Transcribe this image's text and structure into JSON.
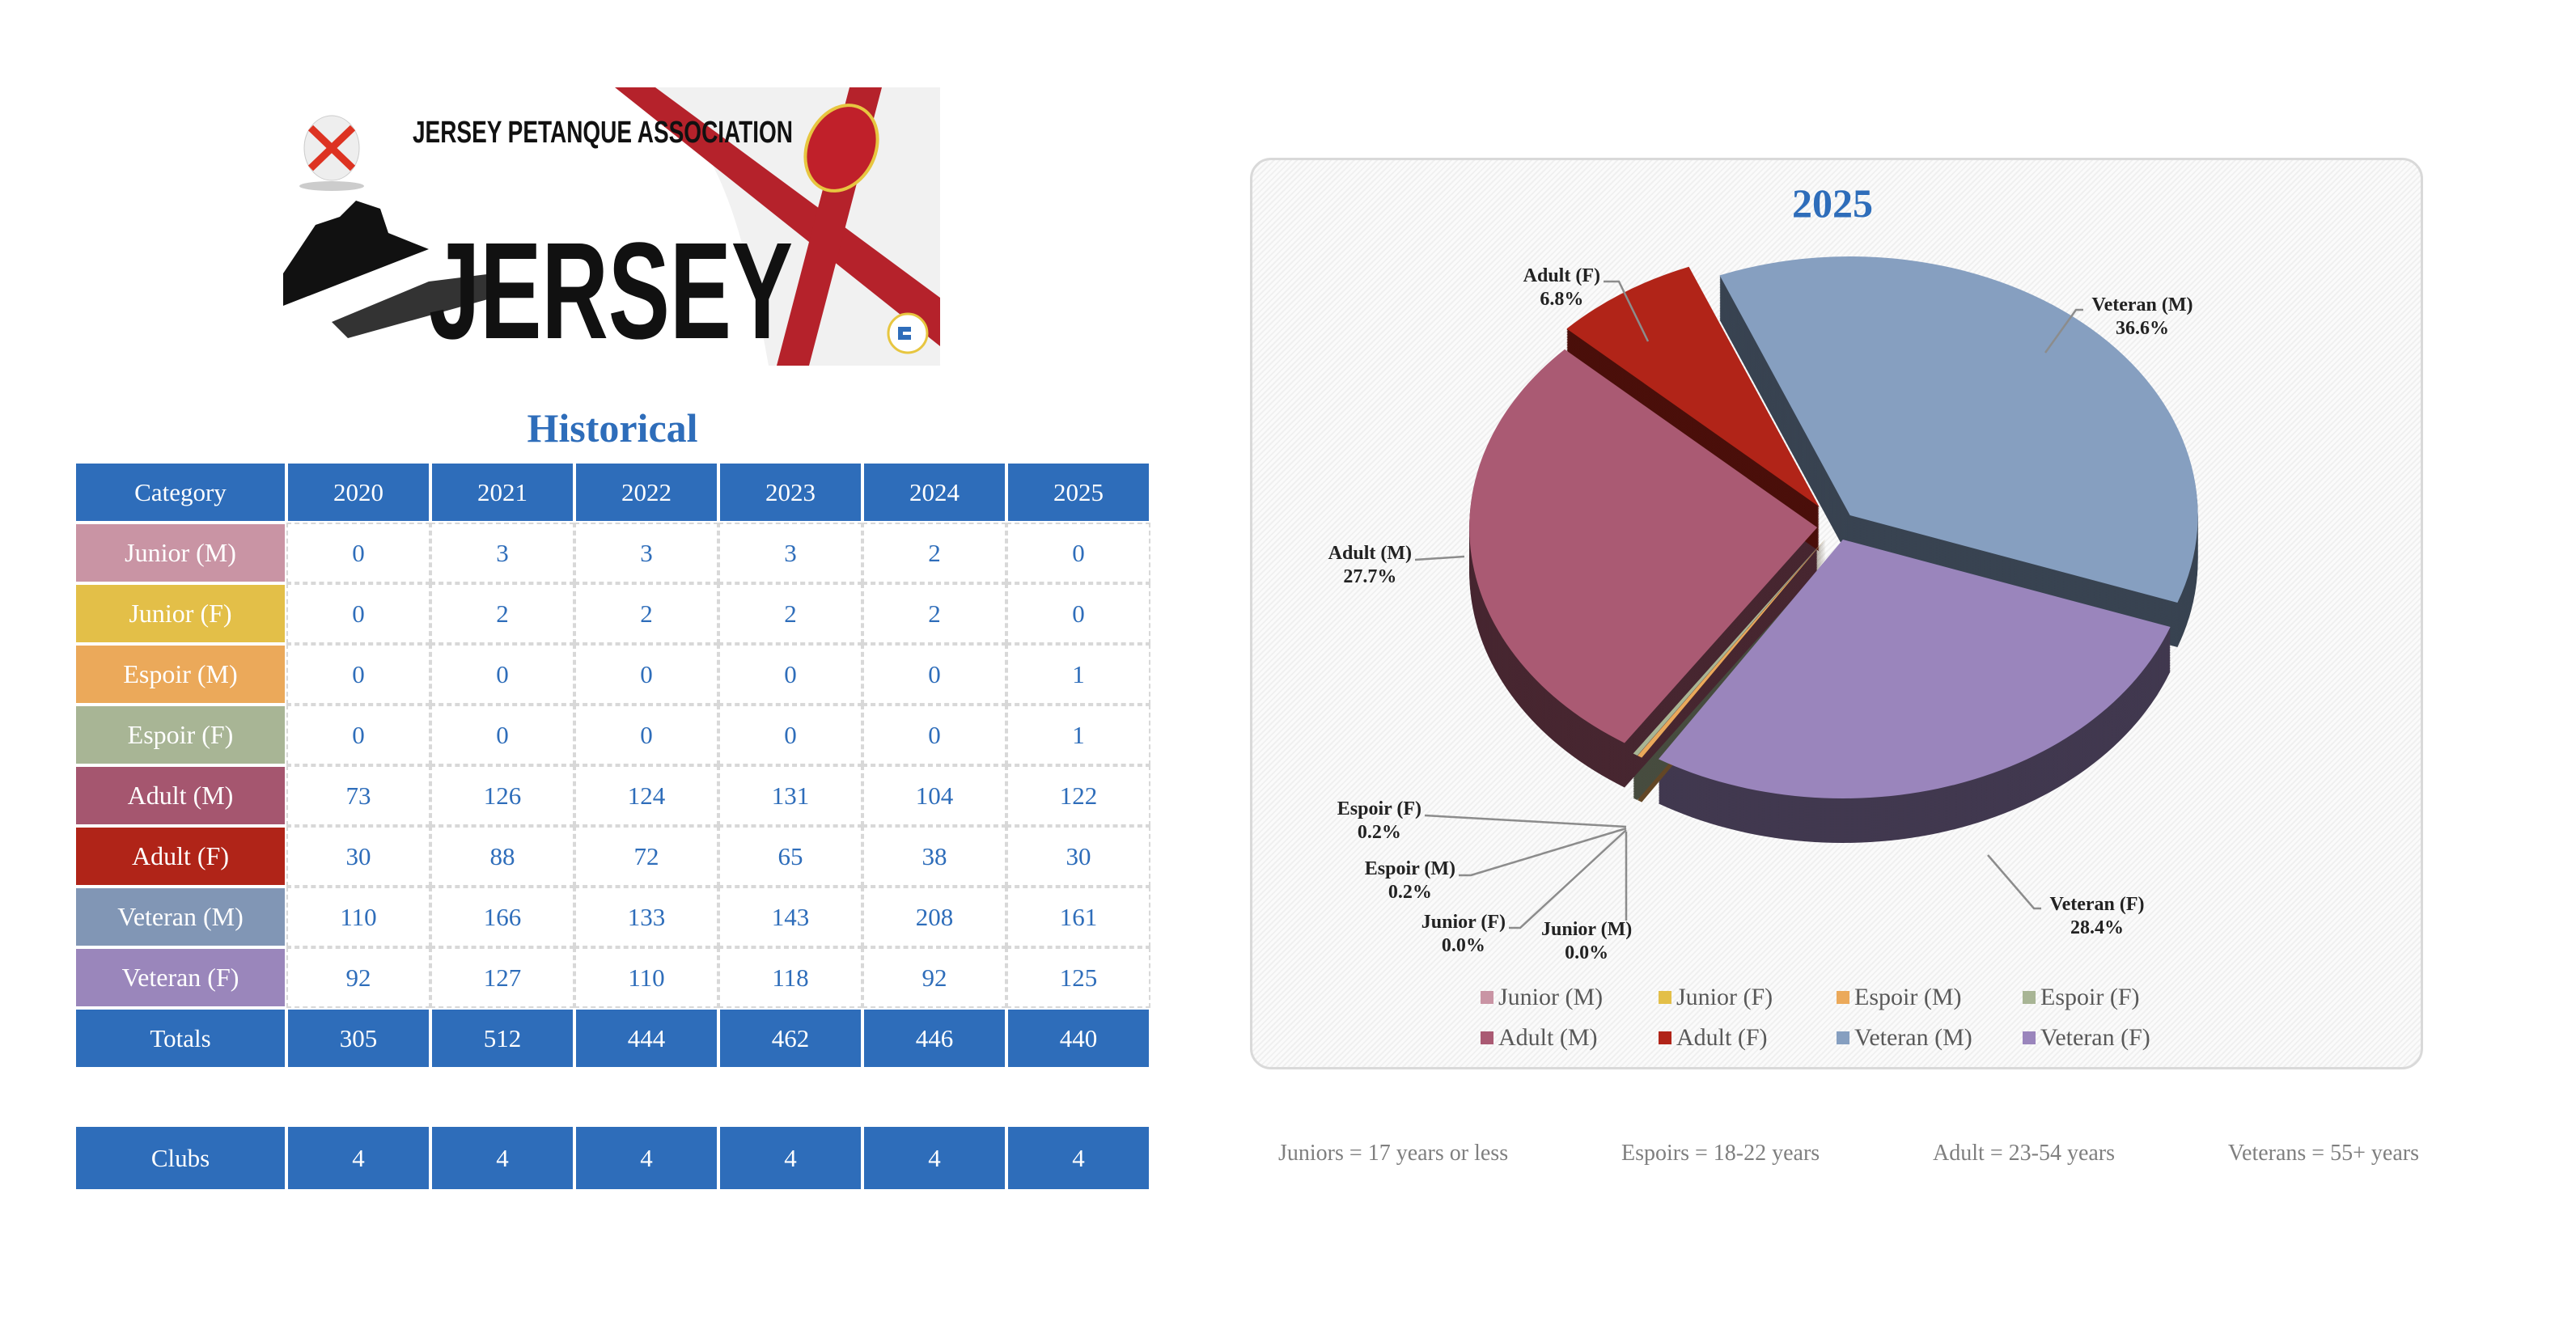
{
  "logo": {
    "org_name": "JERSEY PETANQUE ASSOCIATION",
    "wordmark": "JERSEY"
  },
  "historical": {
    "title": "Historical",
    "header": [
      "Category",
      "2020",
      "2021",
      "2022",
      "2023",
      "2024",
      "2025"
    ],
    "rows": [
      {
        "category": "Junior (M)",
        "color": "#C994A4",
        "values": [
          "0",
          "3",
          "3",
          "3",
          "2",
          "0"
        ]
      },
      {
        "category": "Junior (F)",
        "color": "#E3BF48",
        "values": [
          "0",
          "2",
          "2",
          "2",
          "2",
          "0"
        ]
      },
      {
        "category": "Espoir (M)",
        "color": "#EBA95A",
        "values": [
          "0",
          "0",
          "0",
          "0",
          "0",
          "1"
        ]
      },
      {
        "category": "Espoir (F)",
        "color": "#A8B595",
        "values": [
          "0",
          "0",
          "0",
          "0",
          "0",
          "1"
        ]
      },
      {
        "category": "Adult (M)",
        "color": "#A5566F",
        "values": [
          "73",
          "126",
          "124",
          "131",
          "104",
          "122"
        ]
      },
      {
        "category": "Adult (F)",
        "color": "#B02418",
        "values": [
          "30",
          "88",
          "72",
          "65",
          "38",
          "30"
        ]
      },
      {
        "category": "Veteran (M)",
        "color": "#8196B5",
        "values": [
          "110",
          "166",
          "133",
          "143",
          "208",
          "161"
        ]
      },
      {
        "category": "Veteran (F)",
        "color": "#9A86BB",
        "values": [
          "92",
          "127",
          "110",
          "118",
          "92",
          "125"
        ]
      }
    ],
    "totals": {
      "label": "Totals",
      "values": [
        "305",
        "512",
        "444",
        "462",
        "446",
        "440"
      ]
    },
    "clubs": {
      "label": "Clubs",
      "values": [
        "4",
        "4",
        "4",
        "4",
        "4",
        "4"
      ]
    }
  },
  "chart_data": {
    "type": "pie",
    "title": "2025",
    "categories": [
      "Junior (M)",
      "Junior (F)",
      "Espoir (M)",
      "Espoir (F)",
      "Adult (M)",
      "Adult (F)",
      "Veteran (M)",
      "Veteran (F)"
    ],
    "values": [
      0,
      0,
      1,
      1,
      122,
      30,
      161,
      125
    ],
    "percent_labels": [
      "0.0%",
      "0.0%",
      "0.2%",
      "0.2%",
      "27.7%",
      "6.8%",
      "36.6%",
      "28.4%"
    ],
    "colors": [
      "#C994A4",
      "#E3BF48",
      "#EBA95A",
      "#A8B595",
      "#AA5A73",
      "#B12418",
      "#869FC0",
      "#9A85BC"
    ],
    "legend_placement": "bottom",
    "style": "3d-exploded"
  },
  "footnotes": [
    "Juniors = 17 years or less",
    "Espoirs = 18-22 years",
    "Adult = 23-54 years",
    "Veterans = 55+ years"
  ]
}
